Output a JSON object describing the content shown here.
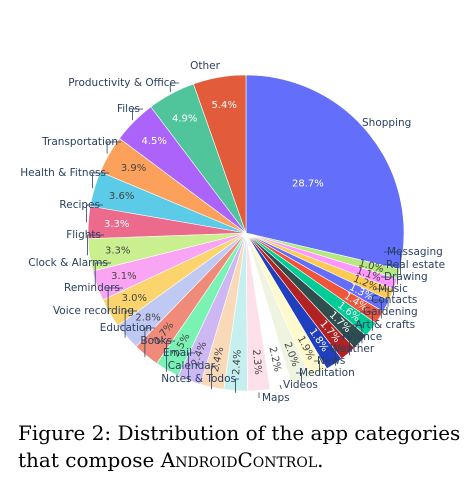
{
  "caption": {
    "prefix": "Figure 2: Distribution of the app categories that compose ",
    "dataset": "AndroidControl",
    "suffix": "."
  },
  "chart_data": {
    "type": "pie",
    "title": "",
    "unit": "%",
    "direction": "clockwise",
    "start": "top",
    "slices": [
      {
        "label": "Shopping",
        "value": 28.7,
        "text": "28.7%",
        "color": "#636efa"
      },
      {
        "label": "Messaging",
        "value": 1.0,
        "text": "1.0%",
        "color": "#b6e880"
      },
      {
        "label": "Real estate",
        "value": 1.1,
        "text": "1.1%",
        "color": "#ff97ff"
      },
      {
        "label": "Drawing",
        "value": 1.2,
        "text": "1.2%",
        "color": "#fecb52"
      },
      {
        "label": "Music",
        "value": 1.3,
        "text": "1.3%",
        "color": "#636efa"
      },
      {
        "label": "Contacts",
        "value": 1.4,
        "text": "1.4%",
        "color": "#ef553b"
      },
      {
        "label": "Gardening",
        "value": 1.6,
        "text": "1.6%",
        "color": "#00cc96"
      },
      {
        "label": "Art & crafts",
        "value": 1.7,
        "text": "1.7%",
        "color": "#2f4f4f"
      },
      {
        "label": "Finance",
        "value": 1.7,
        "text": "1.7%",
        "color": "#b22222"
      },
      {
        "label": "Weather",
        "value": 1.8,
        "text": "1.8%",
        "color": "#1f3fbf"
      },
      {
        "label": "News",
        "value": 1.9,
        "text": "1.9%",
        "color": "#fffacd"
      },
      {
        "label": "Meditation",
        "value": 2.0,
        "text": "2.0%",
        "color": "#eef4e0"
      },
      {
        "label": "Videos",
        "value": 2.2,
        "text": "2.2%",
        "color": "#ffffff"
      },
      {
        "label": "Maps",
        "value": 2.3,
        "text": "2.3%",
        "color": "#fde0e9"
      },
      {
        "label": "Notes & Todos",
        "value": 2.4,
        "text": "2.4%",
        "color": "#c6f0f0"
      },
      {
        "label": "Calendar",
        "value": 2.4,
        "text": "2.4%",
        "color": "#fad9b9"
      },
      {
        "label": "Email",
        "value": 2.4,
        "text": "2.4%",
        "color": "#cdb8f4"
      },
      {
        "label": "Books",
        "value": 2.5,
        "text": "2.5%",
        "color": "#79f2b3"
      },
      {
        "label": "Education",
        "value": 2.7,
        "text": "2.7%",
        "color": "#f08a79"
      },
      {
        "label": "Voice recording",
        "value": 2.8,
        "text": "2.8%",
        "color": "#c0c8f4"
      },
      {
        "label": "Reminders",
        "value": 3.0,
        "text": "3.0%",
        "color": "#fcd46e"
      },
      {
        "label": "Clock & Alarms",
        "value": 3.1,
        "text": "3.1%",
        "color": "#f9a5f3"
      },
      {
        "label": "Flights",
        "value": 3.3,
        "text": "3.3%",
        "color": "#c9ef8f"
      },
      {
        "label": "Recipes",
        "value": 3.3,
        "text": "3.3%",
        "color": "#ec6a8b"
      },
      {
        "label": "Health & Fitness",
        "value": 3.6,
        "text": "3.6%",
        "color": "#5ccbe8"
      },
      {
        "label": "Transportation",
        "value": 3.9,
        "text": "3.9%",
        "color": "#fba15c"
      },
      {
        "label": "Files",
        "value": 4.5,
        "text": "4.5%",
        "color": "#ab63fa"
      },
      {
        "label": "Productivity & Office",
        "value": 4.9,
        "text": "4.9%",
        "color": "#50c59c"
      },
      {
        "label": "Other",
        "value": 5.4,
        "text": "5.4%",
        "color": "#e25b3b"
      }
    ]
  }
}
